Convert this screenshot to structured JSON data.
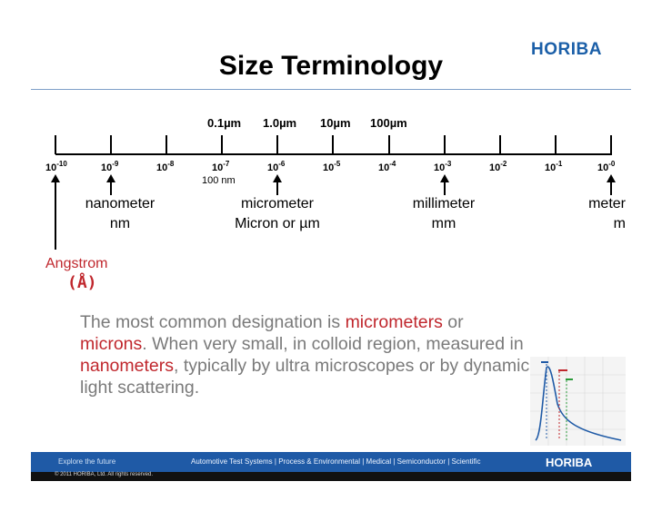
{
  "header": {
    "logo": "HORIBA",
    "title": "Size Terminology"
  },
  "scale": {
    "upper_labels": [
      "0.1µm",
      "1.0µm",
      "10µm",
      "100µm"
    ],
    "tick_labels": [
      {
        "base": "10",
        "exp": "-10"
      },
      {
        "base": "10",
        "exp": "-9"
      },
      {
        "base": "10",
        "exp": "-8"
      },
      {
        "base": "10",
        "exp": "-7"
      },
      {
        "base": "10",
        "exp": "-6"
      },
      {
        "base": "10",
        "exp": "-5"
      },
      {
        "base": "10",
        "exp": "-4"
      },
      {
        "base": "10",
        "exp": "-3"
      },
      {
        "base": "10",
        "exp": "-2"
      },
      {
        "base": "10",
        "exp": "-1"
      },
      {
        "base": "10",
        "exp": "-0"
      }
    ],
    "sub_note": "100 nm"
  },
  "units": {
    "nanometer": {
      "name": "nanometer",
      "abbr": "nm"
    },
    "micrometer": {
      "name": "micrometer",
      "abbr": "Micron or µm"
    },
    "millimeter": {
      "name": "millimeter",
      "abbr": "mm"
    },
    "meter": {
      "name": "meter",
      "abbr": "m"
    },
    "angstrom": {
      "name": "Angstrom",
      "symbol": "(Å)"
    }
  },
  "paragraph": {
    "p1": "The most common designation is ",
    "h1": "micrometers",
    "p2": " or ",
    "h2": "microns",
    "p3": ". When very small, in colloid region, measured in ",
    "h3": "nanometers",
    "p4": ", typically by ultra microscopes or by dynamic light scattering."
  },
  "footer": {
    "tagline": "Explore the future",
    "links": "Automotive Test Systems  |  Process & Environmental  |  Medical  |  Semiconductor  |  Scientific",
    "logo": "HORIBA",
    "copyright": "© 2011 HORIBA, Ltd. All rights reserved."
  },
  "colors": {
    "brand_blue": "#1f5aa6",
    "highlight_red": "#c0272d",
    "body_grey": "#7a7a7a"
  }
}
